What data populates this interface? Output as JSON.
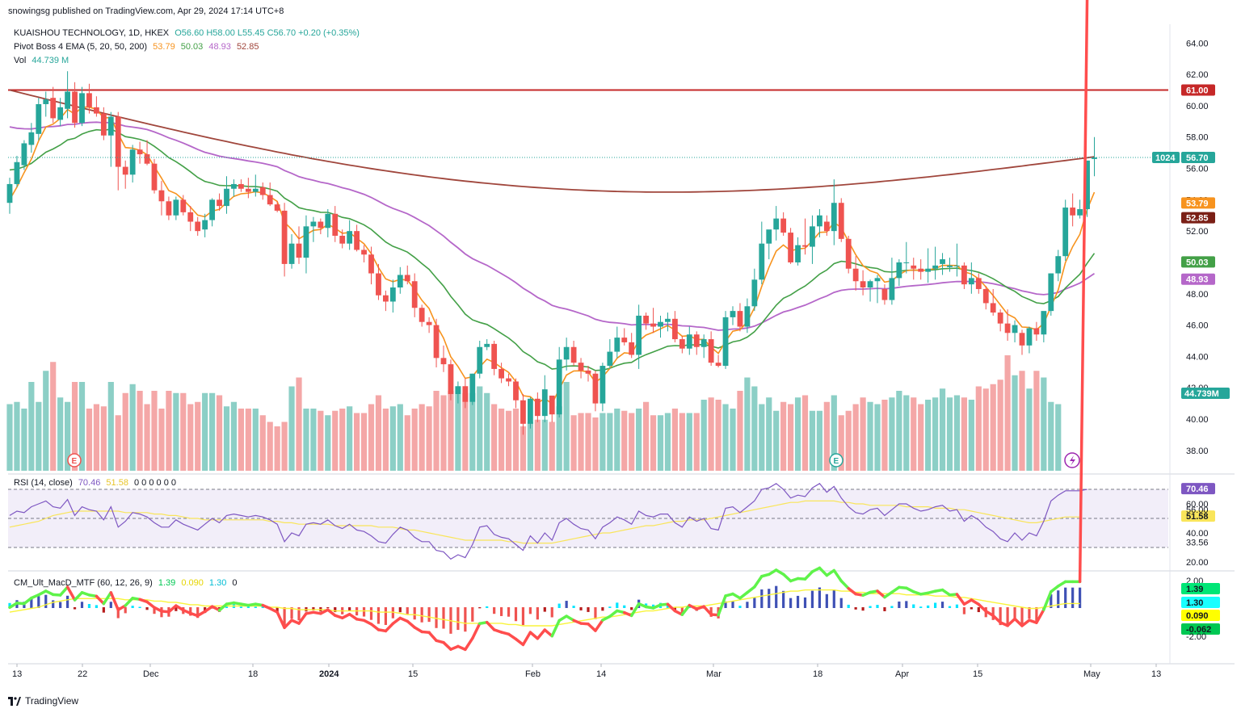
{
  "publisher_line": "snowingsg published on TradingView.com, Apr 29, 2024 17:14 UTC+8",
  "symbol_line": {
    "title": "KUAISHOU TECHNOLOGY, 1D, HKEX",
    "ohlc": "O56.60 H58.00 L55.45 C56.70 +0.20 (+0.35%)"
  },
  "ema_legend": {
    "name": "Pivot Boss 4 EMA (5, 20, 50, 200)",
    "v5": "53.79",
    "v20": "50.03",
    "v50": "48.93",
    "v200": "52.85"
  },
  "vol_legend": {
    "name": "Vol",
    "value": "44.739 M"
  },
  "rsi_legend": {
    "name": "RSI (14, close)",
    "rsi": "70.46",
    "ma": "51.58",
    "extras": "0 0 0 0 0 0"
  },
  "macd_legend": {
    "name": "CM_Ult_MacD_MTF (60, 12, 26, 9)",
    "v1": "1.39",
    "v2": "0.090",
    "v3": "1.30",
    "v4": "0"
  },
  "footer": "TradingView",
  "colors": {
    "up": "#26a69a",
    "down": "#ef5350",
    "ema5": "#f7931e",
    "ema20": "#43a047",
    "ema50": "#b567c9",
    "ema200": "#a0463c",
    "resistance": "#c62828",
    "rsi": "#7e57c2",
    "rsi_ma": "#f9e55a"
  },
  "chart_data": {
    "type": "candlestick",
    "symbol": "KUAISHOU TECHNOLOGY",
    "interval": "1D",
    "exchange": "HKEX",
    "x_tick_labels": [
      "13",
      "22",
      "Dec",
      "18",
      "2024",
      "15",
      "Feb",
      "14",
      "Mar",
      "18",
      "Apr",
      "15",
      "May",
      "13"
    ],
    "y_axis_labels": [
      "38.00",
      "40.00",
      "42.00",
      "44.00",
      "46.00",
      "48.00",
      "50.00",
      "52.00",
      "54.00",
      "56.00",
      "58.00",
      "60.00",
      "62.00",
      "64.00"
    ],
    "ylim": [
      36.6,
      65.2
    ],
    "resistance_level": 61.0,
    "price_tags": {
      "last": "56.70",
      "countdown": "1024",
      "resistance": "61.00",
      "ema5": "53.79",
      "ema200": "52.85",
      "ema20": "50.03",
      "ema50": "48.93",
      "volume": "44.739M"
    },
    "candles_ohlc": [
      [
        53.8,
        55.4,
        53.1,
        55.0
      ],
      [
        55.0,
        56.8,
        54.8,
        56.4
      ],
      [
        56.2,
        57.8,
        55.9,
        57.6
      ],
      [
        57.5,
        58.9,
        57.0,
        58.3
      ],
      [
        58.2,
        60.5,
        57.8,
        60.1
      ],
      [
        60.1,
        60.9,
        59.3,
        60.4
      ],
      [
        60.5,
        61.2,
        58.9,
        59.2
      ],
      [
        59.1,
        60.5,
        58.7,
        59.9
      ],
      [
        59.8,
        62.2,
        59.2,
        60.9
      ],
      [
        60.9,
        61.5,
        58.6,
        58.9
      ],
      [
        58.9,
        61.2,
        58.7,
        60.8
      ],
      [
        60.8,
        61.4,
        59.5,
        59.9
      ],
      [
        59.9,
        60.6,
        59.3,
        59.5
      ],
      [
        59.5,
        59.9,
        57.8,
        58.1
      ],
      [
        58.1,
        59.6,
        56.1,
        59.3
      ],
      [
        59.3,
        59.6,
        54.6,
        56.1
      ],
      [
        56.1,
        56.5,
        54.7,
        55.6
      ],
      [
        55.6,
        57.5,
        55.1,
        57.2
      ],
      [
        57.2,
        57.7,
        56.3,
        56.9
      ],
      [
        56.9,
        57.8,
        56.2,
        56.3
      ],
      [
        56.3,
        56.6,
        54.4,
        54.6
      ],
      [
        54.6,
        55.2,
        53.0,
        53.9
      ],
      [
        53.9,
        54.2,
        52.7,
        53.0
      ],
      [
        53.0,
        54.2,
        52.7,
        54.0
      ],
      [
        54.0,
        54.3,
        53.0,
        53.2
      ],
      [
        53.2,
        53.6,
        52.0,
        52.6
      ],
      [
        52.6,
        52.9,
        51.7,
        52.0
      ],
      [
        52.1,
        53.1,
        51.6,
        52.7
      ],
      [
        52.7,
        54.1,
        52.3,
        54.0
      ],
      [
        54.0,
        54.4,
        53.3,
        53.6
      ],
      [
        53.6,
        55.5,
        53.1,
        54.7
      ],
      [
        54.7,
        55.3,
        54.2,
        55.0
      ],
      [
        55.0,
        55.3,
        54.5,
        54.7
      ],
      [
        54.7,
        55.4,
        54.1,
        54.5
      ],
      [
        54.5,
        55.6,
        54.2,
        54.7
      ],
      [
        54.8,
        55.1,
        54.0,
        54.3
      ],
      [
        54.3,
        55.1,
        53.6,
        53.7
      ],
      [
        53.7,
        53.9,
        53.2,
        53.3
      ],
      [
        53.3,
        53.8,
        49.1,
        49.9
      ],
      [
        49.9,
        51.8,
        49.6,
        51.2
      ],
      [
        51.2,
        52.3,
        49.9,
        50.3
      ],
      [
        50.3,
        53.0,
        49.3,
        52.3
      ],
      [
        52.3,
        52.9,
        51.3,
        52.6
      ],
      [
        52.6,
        52.8,
        51.8,
        52.2
      ],
      [
        52.2,
        53.4,
        51.6,
        53.1
      ],
      [
        53.1,
        53.6,
        51.3,
        51.7
      ],
      [
        51.7,
        52.1,
        50.9,
        51.2
      ],
      [
        51.2,
        52.7,
        50.8,
        52.0
      ],
      [
        52.0,
        52.4,
        50.7,
        50.8
      ],
      [
        50.8,
        51.1,
        50.0,
        50.5
      ],
      [
        50.5,
        51.0,
        48.6,
        49.3
      ],
      [
        49.3,
        49.9,
        47.6,
        47.9
      ],
      [
        47.9,
        48.2,
        46.9,
        47.5
      ],
      [
        47.5,
        48.9,
        46.8,
        48.4
      ],
      [
        48.4,
        49.7,
        48.0,
        49.2
      ],
      [
        49.2,
        49.8,
        48.6,
        48.8
      ],
      [
        48.8,
        49.3,
        46.5,
        47.1
      ],
      [
        47.1,
        47.3,
        45.9,
        46.2
      ],
      [
        46.2,
        46.5,
        45.5,
        46.0
      ],
      [
        46.0,
        46.4,
        43.3,
        43.9
      ],
      [
        43.9,
        44.7,
        43.0,
        43.5
      ],
      [
        43.5,
        43.8,
        41.2,
        41.6
      ],
      [
        41.6,
        42.4,
        41.0,
        42.1
      ],
      [
        42.1,
        42.6,
        40.7,
        41.1
      ],
      [
        41.1,
        42.9,
        40.9,
        42.9
      ],
      [
        42.9,
        45.0,
        42.6,
        44.6
      ],
      [
        44.6,
        45.1,
        44.4,
        44.8
      ],
      [
        44.8,
        45.0,
        42.8,
        43.2
      ],
      [
        43.2,
        43.6,
        42.3,
        42.6
      ],
      [
        42.6,
        42.9,
        42.1,
        42.4
      ],
      [
        42.4,
        42.6,
        40.7,
        41.2
      ],
      [
        41.2,
        41.6,
        39.0,
        39.7
      ],
      [
        39.7,
        41.4,
        39.4,
        41.3
      ],
      [
        41.3,
        41.7,
        39.8,
        40.2
      ],
      [
        40.2,
        42.8,
        39.8,
        41.9
      ],
      [
        41.5,
        40.8,
        39.8,
        40.3
      ],
      [
        40.3,
        44.6,
        40.1,
        43.8
      ],
      [
        43.8,
        45.2,
        43.1,
        44.6
      ],
      [
        44.6,
        45.0,
        43.4,
        43.6
      ],
      [
        43.6,
        43.9,
        42.6,
        43.1
      ],
      [
        43.1,
        43.4,
        42.4,
        42.9
      ],
      [
        42.9,
        43.1,
        40.5,
        41.0
      ],
      [
        41.0,
        43.6,
        40.5,
        43.4
      ],
      [
        43.4,
        45.1,
        43.2,
        44.3
      ],
      [
        44.3,
        45.9,
        43.9,
        45.2
      ],
      [
        45.2,
        45.8,
        44.7,
        44.9
      ],
      [
        44.9,
        45.5,
        43.9,
        44.1
      ],
      [
        44.1,
        47.3,
        43.2,
        46.6
      ],
      [
        46.6,
        46.8,
        45.7,
        46.1
      ],
      [
        46.1,
        47.1,
        45.5,
        45.9
      ],
      [
        45.9,
        46.6,
        45.2,
        46.2
      ],
      [
        46.2,
        46.8,
        45.6,
        46.4
      ],
      [
        46.4,
        46.9,
        44.9,
        45.1
      ],
      [
        45.1,
        45.3,
        44.2,
        44.5
      ],
      [
        44.5,
        45.9,
        44.1,
        45.4
      ],
      [
        45.4,
        45.6,
        44.1,
        44.6
      ],
      [
        44.6,
        45.4,
        43.9,
        45.1
      ],
      [
        45.1,
        45.6,
        43.4,
        43.6
      ],
      [
        43.6,
        44.1,
        43.3,
        43.4
      ],
      [
        43.4,
        46.9,
        43.2,
        46.5
      ],
      [
        46.5,
        47.2,
        46.0,
        46.9
      ],
      [
        46.9,
        47.4,
        45.6,
        45.9
      ],
      [
        45.9,
        47.7,
        45.5,
        47.2
      ],
      [
        47.2,
        49.6,
        46.9,
        48.9
      ],
      [
        48.9,
        52.6,
        48.6,
        51.2
      ],
      [
        51.2,
        52.0,
        50.2,
        52.1
      ],
      [
        52.1,
        53.6,
        51.4,
        52.8
      ],
      [
        52.8,
        53.2,
        51.7,
        51.9
      ],
      [
        51.9,
        52.2,
        49.9,
        50.0
      ],
      [
        50.0,
        51.6,
        49.8,
        51.1
      ],
      [
        51.1,
        52.8,
        50.5,
        51.0
      ],
      [
        51.0,
        53.0,
        49.9,
        52.3
      ],
      [
        52.3,
        53.4,
        51.6,
        53.0
      ],
      [
        52.6,
        53.0,
        51.7,
        52.0
      ],
      [
        52.0,
        55.3,
        51.1,
        53.8
      ],
      [
        53.8,
        54.1,
        51.3,
        51.5
      ],
      [
        51.5,
        51.7,
        49.3,
        49.6
      ],
      [
        49.6,
        50.4,
        48.2,
        48.8
      ],
      [
        48.8,
        49.5,
        47.9,
        48.4
      ],
      [
        48.4,
        48.9,
        47.5,
        48.8
      ],
      [
        48.8,
        49.2,
        47.4,
        49.0
      ],
      [
        48.3,
        48.6,
        47.3,
        47.6
      ],
      [
        47.6,
        50.3,
        47.3,
        49.0
      ],
      [
        49.0,
        50.2,
        48.5,
        50.0
      ],
      [
        50.0,
        51.3,
        49.3,
        50.0
      ],
      [
        49.8,
        50.3,
        48.9,
        49.6
      ],
      [
        49.6,
        50.2,
        48.9,
        49.4
      ],
      [
        49.4,
        50.9,
        48.7,
        49.6
      ],
      [
        49.6,
        51.0,
        48.9,
        49.8
      ],
      [
        49.9,
        50.6,
        49.2,
        50.2
      ],
      [
        49.7,
        50.3,
        49.4,
        49.8
      ],
      [
        49.8,
        51.2,
        49.1,
        49.8
      ],
      [
        49.8,
        50.0,
        48.3,
        48.6
      ],
      [
        48.6,
        50.0,
        48.0,
        49.0
      ],
      [
        49.0,
        49.3,
        48.0,
        48.3
      ],
      [
        48.3,
        48.5,
        47.0,
        47.4
      ],
      [
        47.4,
        48.3,
        46.6,
        46.8
      ],
      [
        46.8,
        47.0,
        45.6,
        46.1
      ],
      [
        46.1,
        47.0,
        45.0,
        45.5
      ],
      [
        45.5,
        46.3,
        44.9,
        46.0
      ],
      [
        45.5,
        45.7,
        44.1,
        44.7
      ],
      [
        44.7,
        45.9,
        44.2,
        45.8
      ],
      [
        45.8,
        46.2,
        45.0,
        45.4
      ],
      [
        45.4,
        46.2,
        44.9,
        46.9
      ],
      [
        46.9,
        49.3,
        46.6,
        49.3
      ],
      [
        49.3,
        50.8,
        48.8,
        50.4
      ],
      [
        50.4,
        54.0,
        50.1,
        53.5
      ],
      [
        53.5,
        54.4,
        52.3,
        53.0
      ],
      [
        53.0,
        54.0,
        52.8,
        53.4
      ],
      [
        53.4,
        54.5,
        52.9,
        56.5
      ],
      [
        56.6,
        58.0,
        55.5,
        56.7
      ]
    ],
    "volume_series_note": "volume bars colored by candle direction",
    "volume": [
      30,
      31,
      28,
      40,
      31,
      45,
      49,
      33,
      31,
      40,
      40,
      28,
      30,
      29,
      40,
      25,
      35,
      39,
      36,
      30,
      36,
      28,
      36,
      35,
      35,
      30,
      31,
      35,
      35,
      34,
      29,
      31,
      28,
      28,
      28,
      25,
      22,
      20,
      22,
      38,
      42,
      28,
      28,
      27,
      25,
      27,
      28,
      29,
      26,
      26,
      30,
      34,
      28,
      29,
      30,
      25,
      28,
      30,
      29,
      36,
      34,
      36,
      38,
      35,
      35,
      38,
      35,
      30,
      28,
      27,
      28,
      20,
      22,
      23,
      23,
      22,
      29,
      40,
      25,
      26,
      26,
      24,
      26,
      26,
      28,
      27,
      26,
      28,
      31,
      25,
      25,
      26,
      28,
      26,
      26,
      26,
      32,
      33,
      32,
      30,
      28,
      36,
      42,
      38,
      30,
      33,
      27,
      31,
      30,
      33,
      34,
      27,
      27,
      31,
      34,
      25,
      27,
      30,
      33,
      31,
      30,
      32,
      33,
      36,
      34,
      33,
      30,
      32,
      33,
      37,
      33,
      34,
      33,
      32,
      38,
      37,
      39,
      41,
      52,
      43,
      45,
      37,
      45,
      42,
      31,
      30
    ],
    "rsi": [
      52,
      55,
      54,
      58,
      60,
      62,
      58,
      57,
      63,
      52,
      58,
      56,
      55,
      49,
      58,
      44,
      48,
      54,
      53,
      51,
      47,
      44,
      44,
      49,
      46,
      44,
      42,
      46,
      50,
      47,
      52,
      53,
      52,
      51,
      52,
      51,
      49,
      46,
      34,
      40,
      38,
      46,
      47,
      46,
      49,
      45,
      43,
      46,
      42,
      41,
      38,
      34,
      33,
      39,
      44,
      42,
      37,
      34,
      34,
      28,
      27,
      22,
      25,
      23,
      32,
      44,
      45,
      39,
      37,
      36,
      32,
      28,
      38,
      33,
      40,
      35,
      47,
      50,
      46,
      43,
      42,
      36,
      44,
      47,
      51,
      49,
      46,
      55,
      52,
      51,
      53,
      53,
      47,
      44,
      51,
      48,
      50,
      43,
      42,
      57,
      58,
      54,
      58,
      62,
      70,
      71,
      74,
      70,
      64,
      66,
      65,
      71,
      74,
      68,
      72,
      64,
      58,
      54,
      53,
      56,
      57,
      52,
      56,
      60,
      60,
      57,
      55,
      56,
      58,
      59,
      55,
      56,
      48,
      52,
      49,
      44,
      41,
      36,
      34,
      40,
      35,
      40,
      38,
      48,
      62,
      66,
      69,
      69,
      69,
      70
    ],
    "rsi_ma": [
      44,
      45,
      46,
      47,
      48,
      50,
      52,
      53,
      54,
      55,
      55,
      55,
      55,
      55,
      55,
      55,
      54,
      54,
      54,
      54,
      53,
      53,
      52,
      52,
      51,
      50,
      50,
      49,
      49,
      49,
      49,
      49,
      49,
      49,
      49,
      49,
      48,
      48,
      47,
      47,
      46,
      46,
      46,
      46,
      46,
      45,
      45,
      45,
      45,
      45,
      45,
      44,
      44,
      44,
      43,
      42,
      42,
      41,
      40,
      39,
      38,
      37,
      36,
      35,
      35,
      35,
      35,
      35,
      35,
      34,
      34,
      33,
      33,
      33,
      33,
      33,
      34,
      35,
      36,
      37,
      38,
      39,
      40,
      40,
      41,
      42,
      43,
      44,
      45,
      45,
      46,
      47,
      48,
      48,
      49,
      49,
      49,
      50,
      51,
      52,
      53,
      54,
      55,
      56,
      57,
      58,
      59,
      60,
      61,
      61,
      62,
      62,
      62,
      62,
      62,
      61,
      61,
      60,
      60,
      59,
      59,
      59,
      59,
      59,
      58,
      58,
      58,
      58,
      57,
      57,
      57,
      56,
      56,
      55,
      54,
      53,
      52,
      51,
      50,
      49,
      48,
      47,
      47,
      48,
      49,
      50,
      51,
      51,
      51
    ],
    "rsi_levels": {
      "top": 70,
      "bottom": 30
    },
    "rsi_axis_labels": [
      "20.00",
      "33.56",
      "40.00",
      "51.58",
      "56.00",
      "60.00",
      "70.46"
    ],
    "macd_axis_labels": [
      "2.00",
      "1.39",
      "1.30",
      "0.090",
      "-0.062",
      "-2.00"
    ]
  }
}
